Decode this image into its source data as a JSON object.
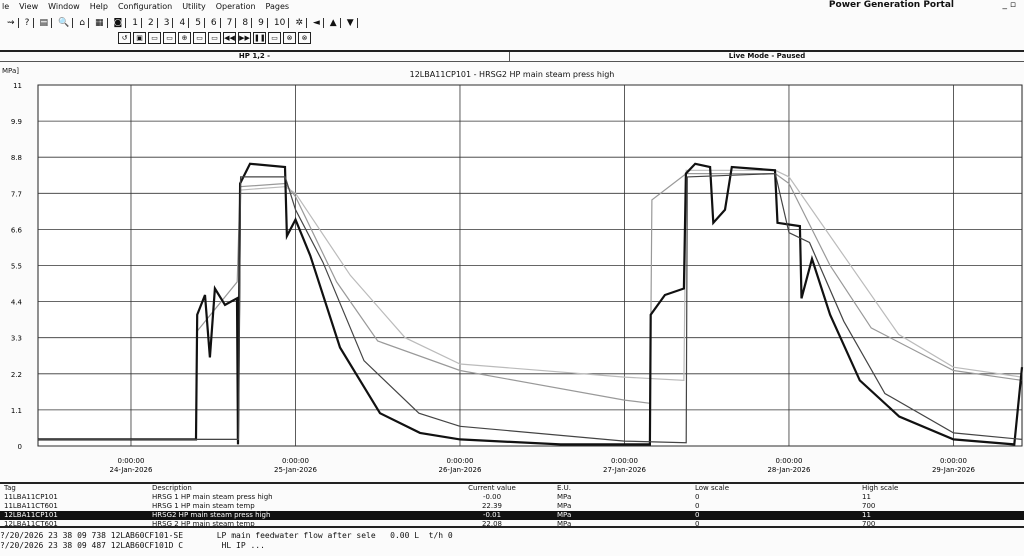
{
  "menu": [
    "le",
    "View",
    "Window",
    "Help",
    "Configuration",
    "Utility",
    "Operation",
    "Pages"
  ],
  "portal_title": "Power Generation Portal",
  "toolbar1": [
    "⇝",
    "?",
    "▤",
    "🔍",
    "⌂",
    "▦",
    "◙",
    "1",
    "2",
    "3",
    "4",
    "5",
    "6",
    "7",
    "8",
    "9",
    "10",
    "✲",
    "◄",
    "▲",
    "▼"
  ],
  "toolbar2": [
    "↺",
    "▣",
    "▭",
    "▭",
    "⊕",
    "▭",
    "▭",
    "◀◀",
    "▶▶",
    "❚❚",
    "▭",
    "⊗",
    "⊗"
  ],
  "header": {
    "left": "HP 1,2 -",
    "right": "Live Mode - Paused"
  },
  "chart_data": {
    "type": "line",
    "title": "12LBA11CP101 - HRSG2 HP main steam press high",
    "ylabel": "MPa]",
    "ylim": [
      0,
      11
    ],
    "yticks": [
      "0",
      "1.1",
      "2.2",
      "3.3",
      "4.4",
      "5.5",
      "6.6",
      "7.7",
      "8.8",
      "9.9",
      "11"
    ],
    "xlim": [
      "2026-01-23T10:26",
      "2026-01-29T10:00"
    ],
    "xticks": [
      {
        "t": "2026-01-24T00:00",
        "time": "0:00:00",
        "date": "24-Jan-2026"
      },
      {
        "t": "2026-01-25T00:00",
        "time": "0:00:00",
        "date": "25-Jan-2026"
      },
      {
        "t": "2026-01-26T00:00",
        "time": "0:00:00",
        "date": "26-Jan-2026"
      },
      {
        "t": "2026-01-27T00:00",
        "time": "0:00:00",
        "date": "27-Jan-2026"
      },
      {
        "t": "2026-01-28T00:00",
        "time": "0:00:00",
        "date": "28-Jan-2026"
      },
      {
        "t": "2026-01-29T00:00",
        "time": "0:00:00",
        "date": "29-Jan-2026"
      }
    ],
    "grid": true,
    "series": [
      {
        "name": "HRSG 1 HP main steam press high",
        "color": "#999999",
        "points": [
          [
            "2026-01-23T10:26",
            0.2
          ],
          [
            "2026-01-24T09:30",
            0.2
          ],
          [
            "2026-01-24T09:40",
            3.5
          ],
          [
            "2026-01-24T15:30",
            5.0
          ],
          [
            "2026-01-24T15:55",
            7.9
          ],
          [
            "2026-01-24T22:30",
            8.0
          ],
          [
            "2026-01-25T00:00",
            7.6
          ],
          [
            "2026-01-25T06:00",
            5.0
          ],
          [
            "2026-01-25T12:00",
            3.2
          ],
          [
            "2026-01-26T00:00",
            2.3
          ],
          [
            "2026-01-27T00:00",
            1.4
          ],
          [
            "2026-01-27T03:45",
            1.3
          ],
          [
            "2026-01-27T04:00",
            7.5
          ],
          [
            "2026-01-27T09:00",
            8.3
          ],
          [
            "2026-01-27T22:00",
            8.3
          ],
          [
            "2026-01-28T00:00",
            8.0
          ],
          [
            "2026-01-28T06:00",
            5.5
          ],
          [
            "2026-01-28T12:00",
            3.6
          ],
          [
            "2026-01-29T00:00",
            2.3
          ],
          [
            "2026-01-29T10:00",
            2.0
          ]
        ]
      },
      {
        "name": "HRSG 1 HP main steam temp",
        "color": "#bbbbbb",
        "points": [
          [
            "2026-01-23T10:26",
            0.2
          ],
          [
            "2026-01-24T15:30",
            0.2
          ],
          [
            "2026-01-24T16:00",
            7.8
          ],
          [
            "2026-01-24T22:30",
            7.9
          ],
          [
            "2026-01-25T00:00",
            7.7
          ],
          [
            "2026-01-25T08:00",
            5.2
          ],
          [
            "2026-01-25T16:00",
            3.3
          ],
          [
            "2026-01-26T00:00",
            2.5
          ],
          [
            "2026-01-27T00:00",
            2.1
          ],
          [
            "2026-01-27T08:40",
            2.0
          ],
          [
            "2026-01-27T09:00",
            8.4
          ],
          [
            "2026-01-27T22:00",
            8.4
          ],
          [
            "2026-01-28T00:00",
            8.2
          ],
          [
            "2026-01-28T08:00",
            5.8
          ],
          [
            "2026-01-28T16:00",
            3.4
          ],
          [
            "2026-01-29T00:00",
            2.4
          ],
          [
            "2026-01-29T10:00",
            2.1
          ]
        ]
      },
      {
        "name": "HRSG2 HP main steam press high",
        "color": "#111111",
        "points": [
          [
            "2026-01-23T10:26",
            0.2
          ],
          [
            "2026-01-24T09:29",
            0.2
          ],
          [
            "2026-01-24T09:40",
            4.0
          ],
          [
            "2026-01-24T10:48",
            4.6
          ],
          [
            "2026-01-24T11:31",
            2.7
          ],
          [
            "2026-01-24T12:15",
            4.8
          ],
          [
            "2026-01-24T13:43",
            4.3
          ],
          [
            "2026-01-24T15:28",
            4.5
          ],
          [
            "2026-01-24T15:37",
            0.05
          ],
          [
            "2026-01-24T15:55",
            8.0
          ],
          [
            "2026-01-24T17:22",
            8.6
          ],
          [
            "2026-01-24T22:28",
            8.5
          ],
          [
            "2026-01-24T22:45",
            6.4
          ],
          [
            "2026-01-25T00:00",
            6.9
          ],
          [
            "2026-01-25T02:10",
            5.8
          ],
          [
            "2026-01-25T06:30",
            3.0
          ],
          [
            "2026-01-25T12:20",
            1.0
          ],
          [
            "2026-01-25T18:10",
            0.4
          ],
          [
            "2026-01-26T00:00",
            0.2
          ],
          [
            "2026-01-26T14:40",
            0.05
          ],
          [
            "2026-01-27T03:43",
            0.05
          ],
          [
            "2026-01-27T03:50",
            4.0
          ],
          [
            "2026-01-27T05:54",
            4.6
          ],
          [
            "2026-01-27T08:40",
            4.8
          ],
          [
            "2026-01-27T08:58",
            8.3
          ],
          [
            "2026-01-27T10:19",
            8.6
          ],
          [
            "2026-01-27T12:30",
            8.5
          ],
          [
            "2026-01-27T12:58",
            6.8
          ],
          [
            "2026-01-27T14:40",
            7.2
          ],
          [
            "2026-01-27T15:40",
            8.5
          ],
          [
            "2026-01-27T21:58",
            8.4
          ],
          [
            "2026-01-27T22:20",
            6.8
          ],
          [
            "2026-01-28T01:36",
            6.7
          ],
          [
            "2026-01-28T01:50",
            4.5
          ],
          [
            "2026-01-28T03:22",
            5.7
          ],
          [
            "2026-01-28T06:00",
            4.0
          ],
          [
            "2026-01-28T10:20",
            2.0
          ],
          [
            "2026-01-28T16:05",
            0.9
          ],
          [
            "2026-01-29T00:00",
            0.2
          ],
          [
            "2026-01-29T08:53",
            0.05
          ],
          [
            "2026-01-29T10:00",
            2.4
          ]
        ]
      },
      {
        "name": "HRSG 2 HP main steam temp",
        "color": "#444444",
        "points": [
          [
            "2026-01-23T10:26",
            0.2
          ],
          [
            "2026-01-24T15:40",
            0.2
          ],
          [
            "2026-01-24T16:00",
            8.2
          ],
          [
            "2026-01-24T22:30",
            8.2
          ],
          [
            "2026-01-25T00:00",
            7.2
          ],
          [
            "2026-01-25T04:00",
            5.6
          ],
          [
            "2026-01-25T10:00",
            2.6
          ],
          [
            "2026-01-25T18:00",
            1.0
          ],
          [
            "2026-01-26T00:00",
            0.6
          ],
          [
            "2026-01-27T00:00",
            0.15
          ],
          [
            "2026-01-27T09:00",
            0.1
          ],
          [
            "2026-01-27T09:10",
            8.2
          ],
          [
            "2026-01-27T22:00",
            8.3
          ],
          [
            "2026-01-28T00:00",
            6.5
          ],
          [
            "2026-01-28T03:00",
            6.2
          ],
          [
            "2026-01-28T08:00",
            3.8
          ],
          [
            "2026-01-28T14:00",
            1.6
          ],
          [
            "2026-01-29T00:00",
            0.4
          ],
          [
            "2026-01-29T10:00",
            0.2
          ]
        ]
      }
    ]
  },
  "table": {
    "headers": [
      "Tag",
      "Description",
      "Current value",
      "E.U.",
      "Low scale",
      "High scale"
    ],
    "rows": [
      [
        "11LBA11CP101",
        "HRSG 1 HP main steam press high",
        "-0.00",
        "MPa",
        "0",
        "11"
      ],
      [
        "11LBA11CT601",
        "HRSG 1 HP main steam temp",
        "22.39",
        "MPa",
        "0",
        "700"
      ],
      [
        "12LBA11CP101",
        "HRSG2 HP main steam press high",
        "-0.01",
        "MPa",
        "0",
        "11"
      ],
      [
        "12LBA11CT601",
        "HRSG 2 HP main steam temp",
        "22.08",
        "MPa",
        "0",
        "700"
      ]
    ],
    "selected_row": 2
  },
  "log": [
    "?/20/2026 23 38 09 738 12LAB60CF101-SE       LP main feedwater flow after sele   0.00 L  t/h 0",
    "?/20/2026 23 38 09 487 12LAB60CF101D C        HL IP ..."
  ]
}
